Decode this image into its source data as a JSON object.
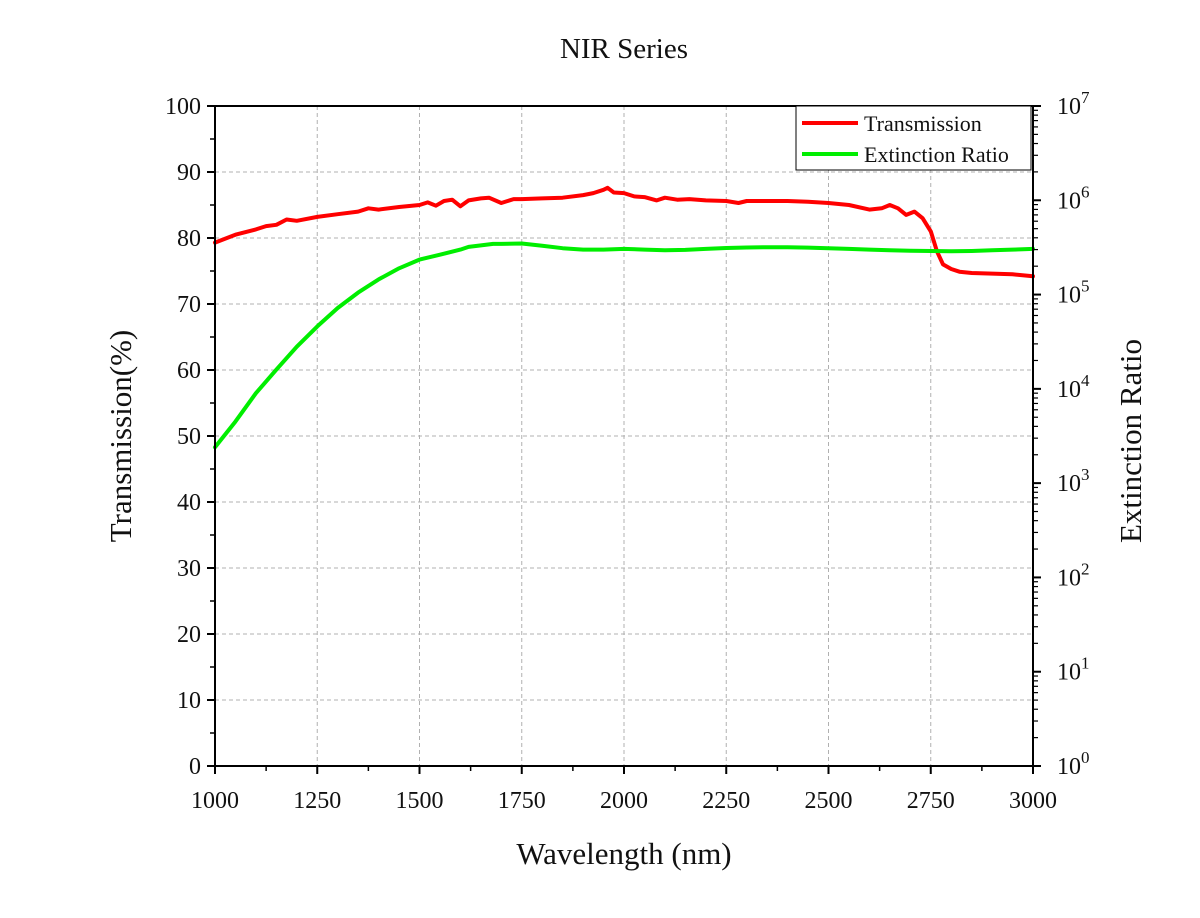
{
  "chart_data": {
    "type": "line",
    "title": "NIR Series",
    "xlabel": "Wavelength (nm)",
    "ylabel_left": "Transmission(%)",
    "ylabel_right": "Extinction Ratio",
    "xlim": [
      1000,
      3000
    ],
    "ylim_left": [
      0,
      100
    ],
    "ylim_right": [
      1,
      10000000
    ],
    "right_axis_scale": "log",
    "x_ticks": [
      1000,
      1250,
      1500,
      1750,
      2000,
      2250,
      2500,
      2750,
      3000
    ],
    "x_tick_labels": [
      "1000",
      "1250",
      "1500",
      "1750",
      "2000",
      "2250",
      "2500",
      "2750",
      "3000"
    ],
    "y_left_ticks": [
      0,
      10,
      20,
      30,
      40,
      50,
      60,
      70,
      80,
      90,
      100
    ],
    "y_left_tick_labels": [
      "0",
      "10",
      "20",
      "30",
      "40",
      "50",
      "60",
      "70",
      "80",
      "90",
      "100"
    ],
    "y_right_ticks": [
      1,
      10,
      100,
      1000,
      10000,
      100000,
      1000000,
      10000000
    ],
    "y_right_tick_labels": [
      {
        "base": "10",
        "exp": "0"
      },
      {
        "base": "10",
        "exp": "1"
      },
      {
        "base": "10",
        "exp": "2"
      },
      {
        "base": "10",
        "exp": "3"
      },
      {
        "base": "10",
        "exp": "4"
      },
      {
        "base": "10",
        "exp": "5"
      },
      {
        "base": "10",
        "exp": "6"
      },
      {
        "base": "10",
        "exp": "7"
      }
    ],
    "grid": true,
    "grid_style": "dashed",
    "legend_position": "top-right",
    "series": [
      {
        "name": "Transmission",
        "axis": "left",
        "color": "#ff0000",
        "points": [
          [
            1000,
            79.3
          ],
          [
            1050,
            80.5
          ],
          [
            1100,
            81.3
          ],
          [
            1125,
            81.8
          ],
          [
            1150,
            82.0
          ],
          [
            1175,
            82.8
          ],
          [
            1200,
            82.6
          ],
          [
            1250,
            83.2
          ],
          [
            1300,
            83.6
          ],
          [
            1350,
            84.0
          ],
          [
            1375,
            84.5
          ],
          [
            1400,
            84.3
          ],
          [
            1450,
            84.7
          ],
          [
            1500,
            85.0
          ],
          [
            1520,
            85.4
          ],
          [
            1540,
            84.9
          ],
          [
            1560,
            85.6
          ],
          [
            1580,
            85.8
          ],
          [
            1600,
            84.8
          ],
          [
            1620,
            85.7
          ],
          [
            1650,
            86.0
          ],
          [
            1670,
            86.1
          ],
          [
            1700,
            85.3
          ],
          [
            1730,
            85.9
          ],
          [
            1750,
            85.9
          ],
          [
            1800,
            86.0
          ],
          [
            1850,
            86.1
          ],
          [
            1900,
            86.5
          ],
          [
            1925,
            86.8
          ],
          [
            1950,
            87.3
          ],
          [
            1960,
            87.6
          ],
          [
            1975,
            86.9
          ],
          [
            2000,
            86.8
          ],
          [
            2025,
            86.3
          ],
          [
            2050,
            86.2
          ],
          [
            2080,
            85.7
          ],
          [
            2100,
            86.1
          ],
          [
            2130,
            85.8
          ],
          [
            2160,
            85.9
          ],
          [
            2200,
            85.7
          ],
          [
            2250,
            85.6
          ],
          [
            2280,
            85.3
          ],
          [
            2300,
            85.6
          ],
          [
            2350,
            85.6
          ],
          [
            2400,
            85.6
          ],
          [
            2450,
            85.5
          ],
          [
            2500,
            85.3
          ],
          [
            2550,
            85.0
          ],
          [
            2600,
            84.3
          ],
          [
            2630,
            84.5
          ],
          [
            2650,
            85.0
          ],
          [
            2670,
            84.5
          ],
          [
            2690,
            83.5
          ],
          [
            2710,
            84.0
          ],
          [
            2730,
            83.0
          ],
          [
            2750,
            81.0
          ],
          [
            2765,
            78.0
          ],
          [
            2780,
            76.0
          ],
          [
            2800,
            75.3
          ],
          [
            2820,
            74.9
          ],
          [
            2850,
            74.7
          ],
          [
            2900,
            74.6
          ],
          [
            2950,
            74.5
          ],
          [
            3000,
            74.2
          ]
        ]
      },
      {
        "name": "Extinction Ratio",
        "axis": "right",
        "color": "#00ee00",
        "points": [
          [
            1000,
            2400
          ],
          [
            1050,
            4500
          ],
          [
            1100,
            9000
          ],
          [
            1150,
            16000
          ],
          [
            1200,
            28000
          ],
          [
            1250,
            46000
          ],
          [
            1300,
            72000
          ],
          [
            1350,
            105000
          ],
          [
            1400,
            145000
          ],
          [
            1450,
            190000
          ],
          [
            1500,
            235000
          ],
          [
            1550,
            265000
          ],
          [
            1600,
            300000
          ],
          [
            1620,
            320000
          ],
          [
            1650,
            332000
          ],
          [
            1680,
            345000
          ],
          [
            1700,
            345000
          ],
          [
            1750,
            348000
          ],
          [
            1800,
            330000
          ],
          [
            1850,
            310000
          ],
          [
            1900,
            300000
          ],
          [
            1950,
            300000
          ],
          [
            2000,
            305000
          ],
          [
            2050,
            300000
          ],
          [
            2100,
            295000
          ],
          [
            2150,
            298000
          ],
          [
            2200,
            305000
          ],
          [
            2250,
            312000
          ],
          [
            2300,
            316000
          ],
          [
            2350,
            318000
          ],
          [
            2400,
            318000
          ],
          [
            2450,
            315000
          ],
          [
            2500,
            310000
          ],
          [
            2550,
            305000
          ],
          [
            2600,
            300000
          ],
          [
            2650,
            295000
          ],
          [
            2700,
            292000
          ],
          [
            2750,
            290000
          ],
          [
            2800,
            288000
          ],
          [
            2850,
            290000
          ],
          [
            2900,
            295000
          ],
          [
            2950,
            300000
          ],
          [
            3000,
            305000
          ]
        ]
      }
    ]
  }
}
